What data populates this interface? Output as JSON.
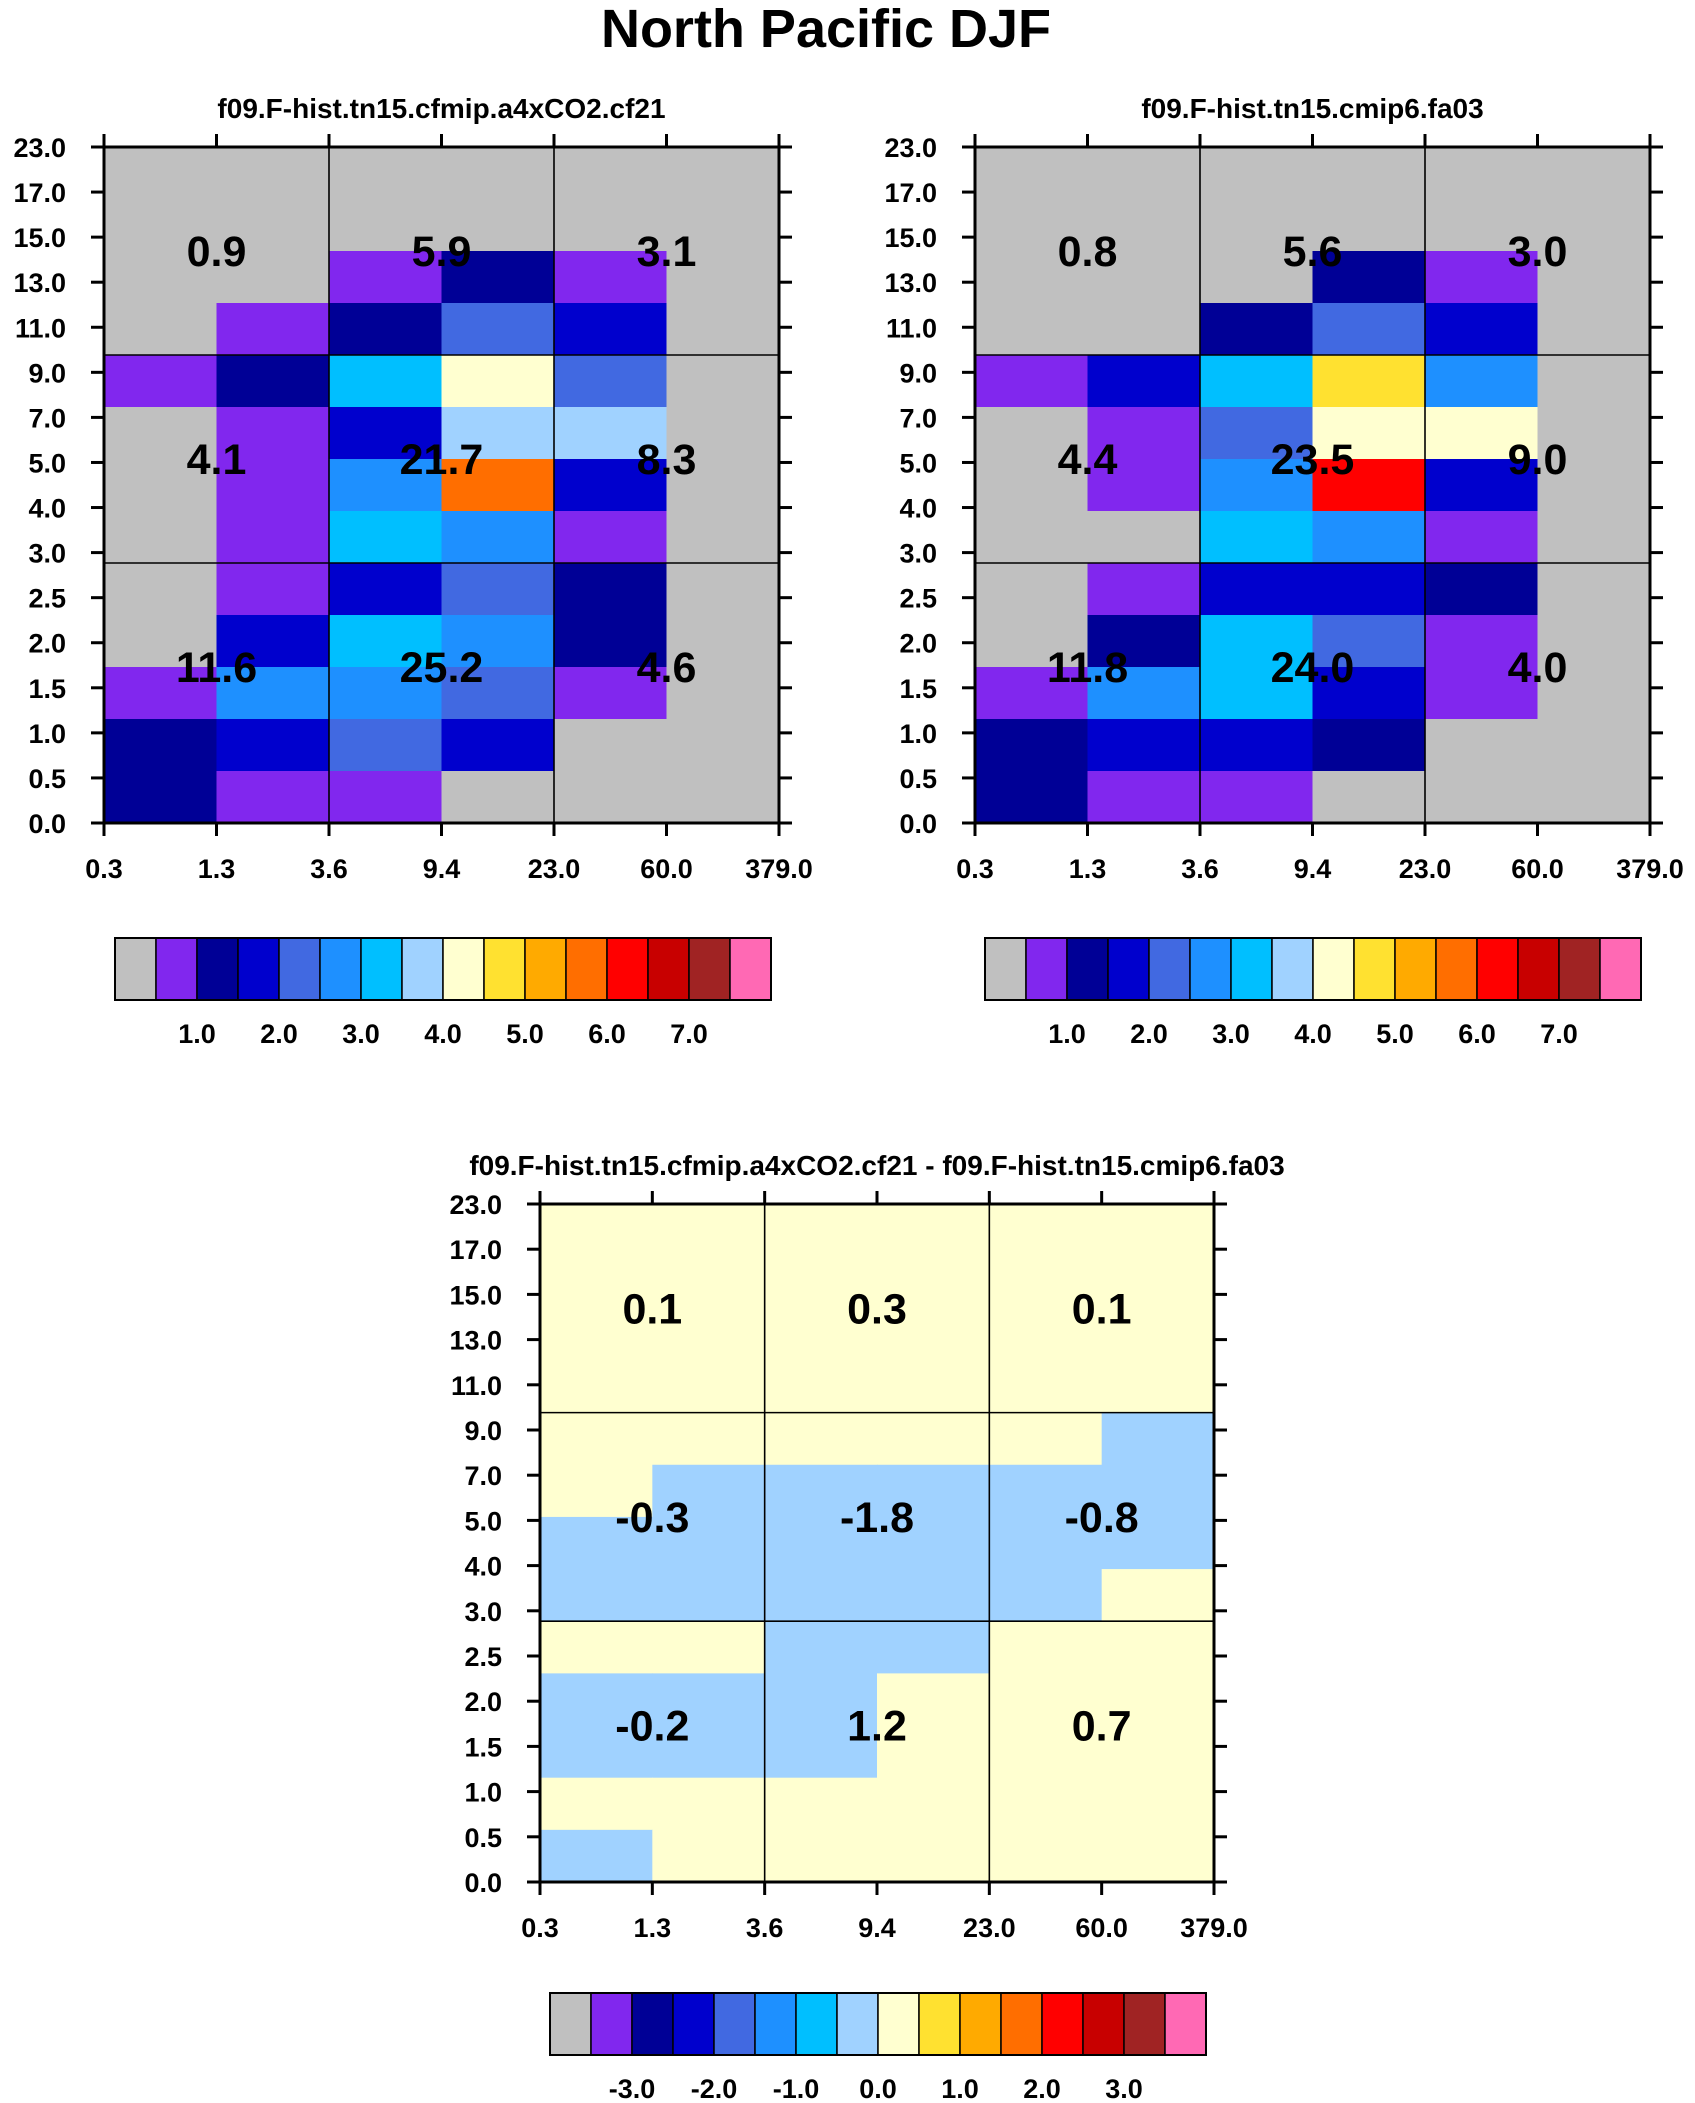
{
  "page": {
    "title": "North Pacific DJF"
  },
  "palette": [
    "#c0c0c0",
    "#8127ee",
    "#000096",
    "#0000cd",
    "#4169e1",
    "#1e90ff",
    "#00bfff",
    "#a0d2ff",
    "#ffffd0",
    "#ffe130",
    "#ffaa00",
    "#ff6e00",
    "#ff0000",
    "#c80000",
    "#a02323",
    "#ff69b4"
  ],
  "chart_data": [
    {
      "type": "heatmap",
      "title": "f09.F-hist.tn15.cfmip.a4xCO2.cf21",
      "x_ticks": [
        "0.3",
        "1.3",
        "3.6",
        "9.4",
        "23.0",
        "60.0",
        "379.0"
      ],
      "y_ticks": [
        "0.0",
        "0.5",
        "1.0",
        "1.5",
        "2.0",
        "2.5",
        "3.0",
        "4.0",
        "5.0",
        "7.0",
        "9.0",
        "11.0",
        "13.0",
        "15.0",
        "17.0",
        "23.0"
      ],
      "cells_note_rows_top_to_bottom": true,
      "cells": [
        [
          0,
          0,
          0,
          0,
          0,
          0
        ],
        [
          0,
          0,
          0,
          0,
          0,
          0
        ],
        [
          0,
          0,
          1,
          2,
          1,
          0
        ],
        [
          0,
          1,
          2,
          4,
          3,
          0
        ],
        [
          1,
          2,
          6,
          8,
          4,
          0
        ],
        [
          0,
          1,
          3,
          7,
          7,
          0
        ],
        [
          0,
          1,
          5,
          11,
          3,
          0
        ],
        [
          0,
          1,
          6,
          5,
          1,
          0
        ],
        [
          0,
          1,
          3,
          4,
          2,
          0
        ],
        [
          0,
          3,
          6,
          5,
          2,
          0
        ],
        [
          1,
          5,
          5,
          4,
          1,
          0
        ],
        [
          2,
          3,
          4,
          3,
          0,
          0
        ],
        [
          2,
          1,
          1,
          0,
          0,
          0
        ]
      ],
      "group_labels": [
        [
          "0.9",
          "5.9",
          "3.1"
        ],
        [
          "4.1",
          "21.7",
          "8.3"
        ],
        [
          "11.6",
          "25.2",
          "4.6"
        ]
      ],
      "colorbar": {
        "labels": [
          "1.0",
          "2.0",
          "3.0",
          "4.0",
          "5.0",
          "6.0",
          "7.0"
        ]
      }
    },
    {
      "type": "heatmap",
      "title": "f09.F-hist.tn15.cmip6.fa03",
      "x_ticks": [
        "0.3",
        "1.3",
        "3.6",
        "9.4",
        "23.0",
        "60.0",
        "379.0"
      ],
      "y_ticks": [
        "0.0",
        "0.5",
        "1.0",
        "1.5",
        "2.0",
        "2.5",
        "3.0",
        "4.0",
        "5.0",
        "7.0",
        "9.0",
        "11.0",
        "13.0",
        "15.0",
        "17.0",
        "23.0"
      ],
      "cells": [
        [
          0,
          0,
          0,
          0,
          0,
          0
        ],
        [
          0,
          0,
          0,
          0,
          0,
          0
        ],
        [
          0,
          0,
          0,
          2,
          1,
          0
        ],
        [
          0,
          0,
          2,
          4,
          3,
          0
        ],
        [
          1,
          3,
          6,
          9,
          5,
          0
        ],
        [
          0,
          1,
          4,
          8,
          8,
          0
        ],
        [
          0,
          1,
          5,
          12,
          3,
          0
        ],
        [
          0,
          0,
          6,
          5,
          1,
          0
        ],
        [
          0,
          1,
          3,
          3,
          2,
          0
        ],
        [
          0,
          2,
          6,
          4,
          1,
          0
        ],
        [
          1,
          5,
          6,
          3,
          1,
          0
        ],
        [
          2,
          3,
          3,
          2,
          0,
          0
        ],
        [
          2,
          1,
          1,
          0,
          0,
          0
        ]
      ],
      "group_labels": [
        [
          "0.8",
          "5.6",
          "3.0"
        ],
        [
          "4.4",
          "23.5",
          "9.0"
        ],
        [
          "11.8",
          "24.0",
          "4.0"
        ]
      ],
      "colorbar": {
        "labels": [
          "1.0",
          "2.0",
          "3.0",
          "4.0",
          "5.0",
          "6.0",
          "7.0"
        ]
      }
    },
    {
      "type": "heatmap",
      "title": "f09.F-hist.tn15.cfmip.a4xCO2.cf21 - f09.F-hist.tn15.cmip6.fa03",
      "x_ticks": [
        "0.3",
        "1.3",
        "3.6",
        "9.4",
        "23.0",
        "60.0",
        "379.0"
      ],
      "y_ticks": [
        "0.0",
        "0.5",
        "1.0",
        "1.5",
        "2.0",
        "2.5",
        "3.0",
        "4.0",
        "5.0",
        "7.0",
        "9.0",
        "11.0",
        "13.0",
        "15.0",
        "17.0",
        "23.0"
      ],
      "cells": [
        [
          8,
          8,
          8,
          8,
          8,
          8
        ],
        [
          8,
          8,
          8,
          8,
          8,
          8
        ],
        [
          8,
          8,
          8,
          8,
          8,
          8
        ],
        [
          8,
          8,
          8,
          8,
          8,
          8
        ],
        [
          8,
          8,
          8,
          8,
          8,
          7
        ],
        [
          8,
          7,
          7,
          7,
          7,
          7
        ],
        [
          7,
          7,
          7,
          7,
          7,
          7
        ],
        [
          7,
          7,
          7,
          7,
          7,
          8
        ],
        [
          8,
          8,
          7,
          7,
          8,
          8
        ],
        [
          7,
          7,
          7,
          8,
          8,
          8
        ],
        [
          7,
          7,
          7,
          8,
          8,
          8
        ],
        [
          8,
          8,
          8,
          8,
          8,
          8
        ],
        [
          7,
          8,
          8,
          8,
          8,
          8
        ]
      ],
      "group_labels": [
        [
          "0.1",
          "0.3",
          "0.1"
        ],
        [
          "-0.3",
          "-1.8",
          "-0.8"
        ],
        [
          "-0.2",
          "1.2",
          "0.7"
        ]
      ],
      "colorbar": {
        "labels": [
          "-3.0",
          "-2.0",
          "-1.0",
          "0.0",
          "1.0",
          "2.0",
          "3.0"
        ]
      }
    }
  ]
}
